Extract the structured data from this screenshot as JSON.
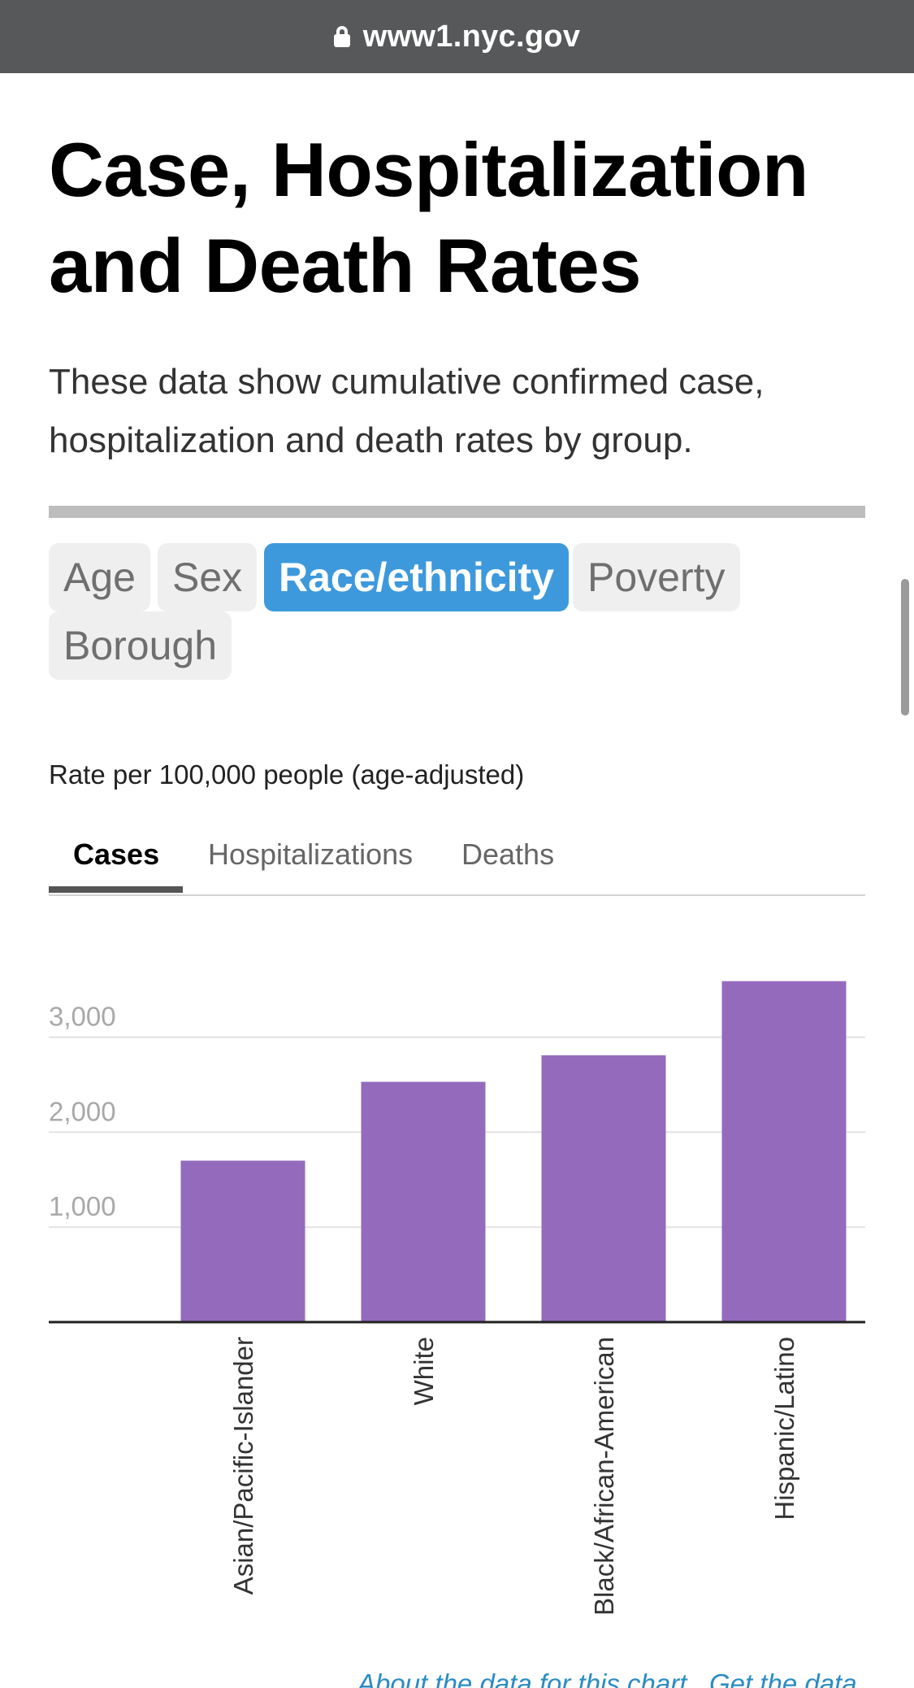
{
  "browser": {
    "url": "www1.nyc.gov",
    "lock_icon": "lock-icon"
  },
  "page": {
    "title_line1": "Case, Hospitalization",
    "title_line2": "and Death Rates",
    "subtitle_line1": "These data show cumulative confirmed case,",
    "subtitle_line2": "hospitalization and death rates by group."
  },
  "group_tabs": [
    {
      "label": "Age",
      "active": false
    },
    {
      "label": "Sex",
      "active": false
    },
    {
      "label": "Race/ethnicity",
      "active": true
    },
    {
      "label": "Poverty",
      "active": false
    },
    {
      "label": "Borough",
      "active": false
    }
  ],
  "rate_label": "Rate per 100,000 people (age-adjusted)",
  "metric_tabs": [
    {
      "label": "Cases",
      "active": true
    },
    {
      "label": "Hospitalizations",
      "active": false
    },
    {
      "label": "Deaths",
      "active": false
    }
  ],
  "colors": {
    "bar": "#946abd",
    "active_pill": "#3d99dc",
    "link": "#2a8cc3"
  },
  "chart_data": {
    "type": "bar",
    "categories": [
      "Asian/Pacific-Islander",
      "White",
      "Black/African-American",
      "Hispanic/Latino"
    ],
    "values": [
      1700,
      2530,
      2810,
      3590
    ],
    "yticks": [
      "1,000",
      "2,000",
      "3,000"
    ],
    "ytick_values": [
      1000,
      2000,
      3000
    ],
    "ylim": [
      0,
      3600
    ],
    "grid": true
  },
  "footer": {
    "link1": "About the data for this chart",
    "link2": "Get the data"
  }
}
